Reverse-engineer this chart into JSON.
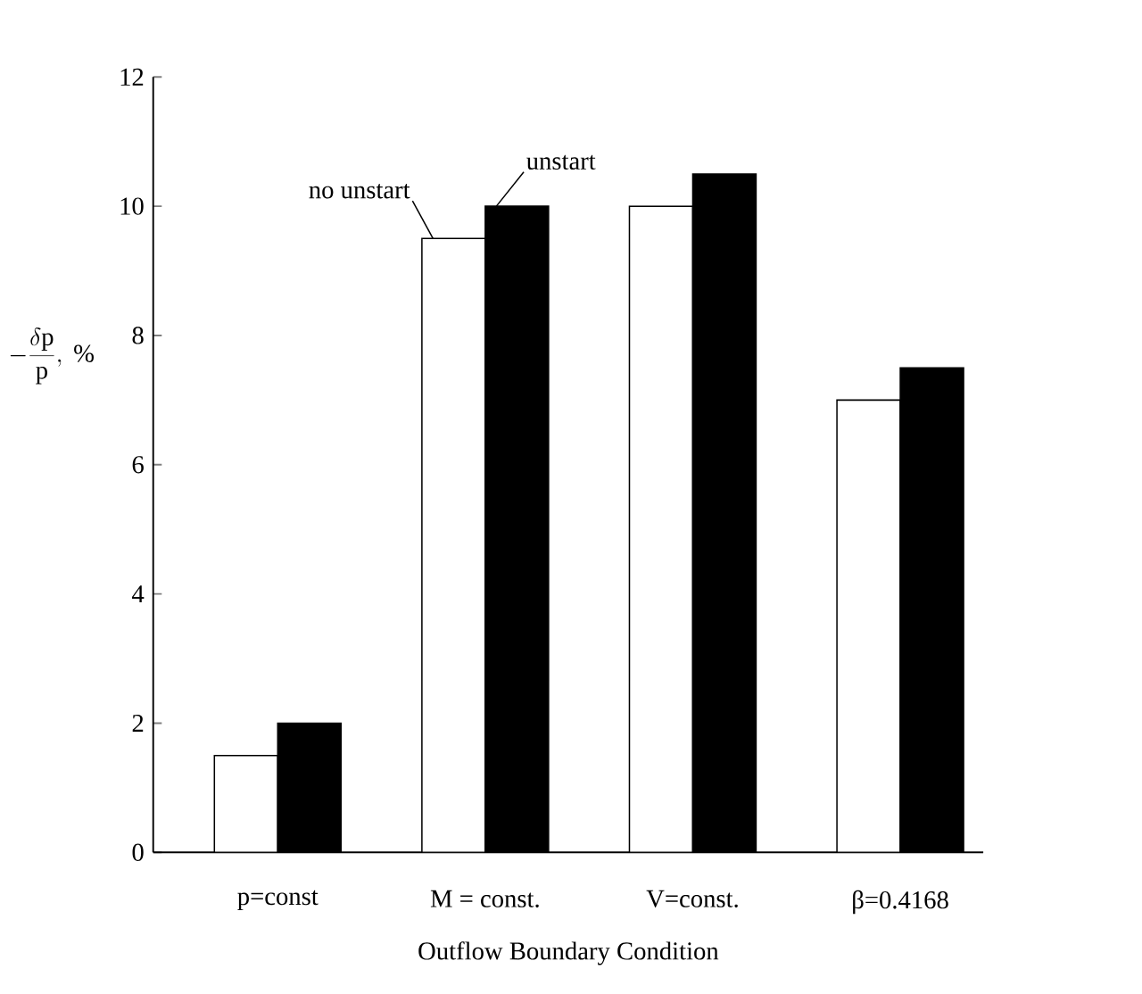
{
  "chart_data": {
    "type": "bar",
    "xlabel": "Outflow Boundary Condition",
    "ylabel": "-\\frac{\\delta \\mathrm{p}}{\\mathrm{p}},\\ \\%",
    "categories": [
      "p=const",
      "M = const.",
      "V=const.",
      "β=0.4168"
    ],
    "series": [
      {
        "name": "no unstart",
        "color": "#ffffff",
        "values": [
          1.5,
          9.5,
          10,
          7
        ]
      },
      {
        "name": "unstart",
        "color": "#000000",
        "values": [
          2,
          10,
          10.5,
          7.5
        ]
      }
    ],
    "ylim": [
      0,
      12
    ],
    "yticks": [
      0,
      2,
      4,
      6,
      8,
      10,
      12
    ],
    "grid": false,
    "legend": false
  }
}
